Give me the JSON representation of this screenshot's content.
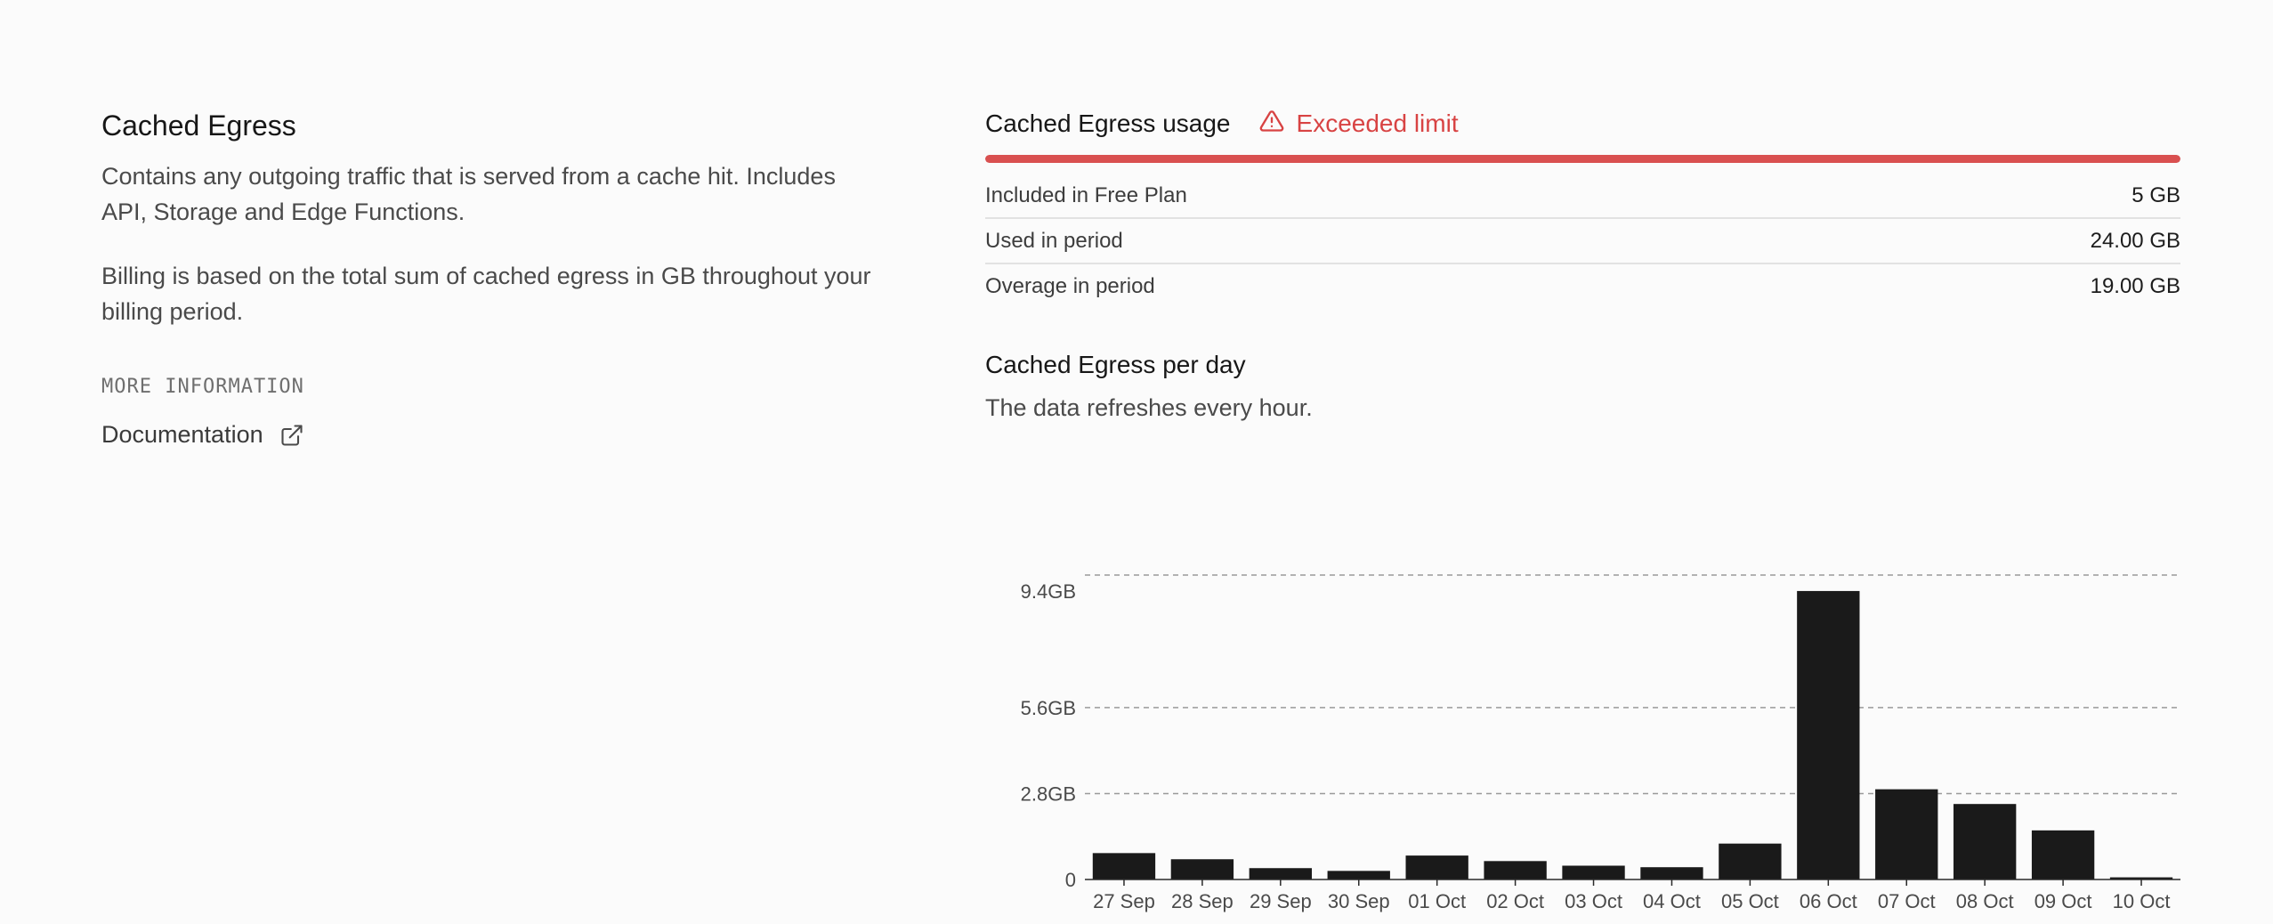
{
  "info": {
    "title": "Cached Egress",
    "description": "Contains any outgoing traffic that is served from a cache hit. Includes API, Storage and Edge Functions.",
    "billing": "Billing is based on the total sum of cached egress in GB throughout your billing period.",
    "more_info_label": "MORE INFORMATION",
    "doc_link_label": "Documentation",
    "doc_icon": "external-link-icon"
  },
  "usage": {
    "title": "Cached Egress usage",
    "status_label": "Exceeded limit",
    "status_icon": "warning-triangle-icon",
    "status_color": "#d84343",
    "progress_fraction": 1.0,
    "progress_color": "#d95050",
    "rows": [
      {
        "label": "Included in Free Plan",
        "value": "5 GB"
      },
      {
        "label": "Used in period",
        "value": "24.00 GB"
      },
      {
        "label": "Overage in period",
        "value": "19.00 GB"
      }
    ]
  },
  "per_day": {
    "title": "Cached Egress per day",
    "subtitle": "The data refreshes every hour."
  },
  "chart_data": {
    "type": "bar",
    "title": "",
    "xlabel": "",
    "ylabel": "",
    "unit": "GB",
    "categories": [
      "27 Sep",
      "28 Sep",
      "29 Sep",
      "30 Sep",
      "01 Oct",
      "02 Oct",
      "03 Oct",
      "04 Oct",
      "05 Oct",
      "06 Oct",
      "07 Oct",
      "08 Oct",
      "09 Oct",
      "10 Oct"
    ],
    "values": [
      0.86,
      0.66,
      0.37,
      0.28,
      0.78,
      0.6,
      0.45,
      0.4,
      1.17,
      9.4,
      2.94,
      2.46,
      1.6,
      0.07
    ],
    "yticks": [
      0,
      2.8,
      5.6,
      9.4
    ],
    "ytick_labels": [
      "0",
      "2.8GB",
      "5.6GB",
      "9.4GB"
    ],
    "ylim": [
      0,
      9.4
    ],
    "grid": true,
    "bar_color": "#1a1a1a"
  }
}
